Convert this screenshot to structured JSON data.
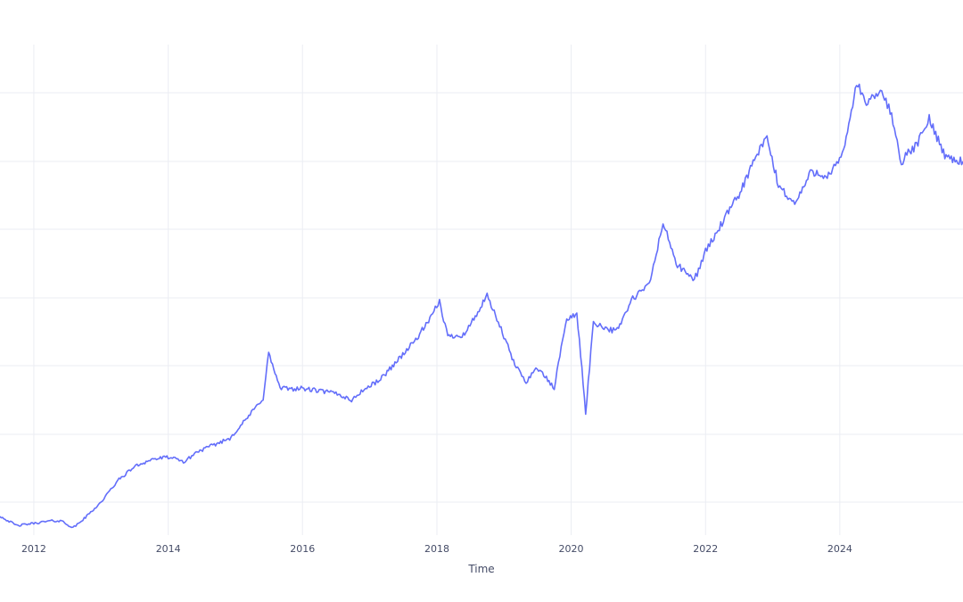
{
  "chart_data": {
    "type": "line",
    "title": "",
    "xlabel": "Time",
    "ylabel": "",
    "x_ticks": [
      "2012",
      "2014",
      "2016",
      "2018",
      "2020",
      "2022",
      "2024"
    ],
    "xlim": [
      "2011-07-01",
      "2025-11-01"
    ],
    "ylim": [
      0,
      1
    ],
    "grid": true,
    "legend": "none",
    "colors": {
      "series": "#636efa",
      "grid": "#ebedf3",
      "text": "#444b66"
    },
    "series": [
      {
        "name": "",
        "x": [
          "2011-07-01",
          "2011-10-01",
          "2012-01-01",
          "2012-04-01",
          "2012-06-01",
          "2012-08-01",
          "2012-10-01",
          "2013-01-01",
          "2013-04-01",
          "2013-07-01",
          "2013-10-01",
          "2014-01-01",
          "2014-04-01",
          "2014-06-01",
          "2014-09-01",
          "2014-12-01",
          "2015-03-01",
          "2015-06-01",
          "2015-07-01",
          "2015-09-01",
          "2016-01-01",
          "2016-04-01",
          "2016-07-01",
          "2016-10-01",
          "2016-11-01",
          "2017-03-01",
          "2017-06-01",
          "2017-09-01",
          "2017-12-01",
          "2018-01-15",
          "2018-03-01",
          "2018-06-01",
          "2018-10-01",
          "2018-12-01",
          "2019-03-01",
          "2019-05-01",
          "2019-07-01",
          "2019-10-01",
          "2019-12-01",
          "2020-02-01",
          "2020-03-20",
          "2020-05-01",
          "2020-09-01",
          "2020-12-01",
          "2021-03-01",
          "2021-05-15",
          "2021-08-01",
          "2021-11-01",
          "2022-01-01",
          "2022-04-01",
          "2022-07-01",
          "2022-10-01",
          "2022-12-01",
          "2023-02-01",
          "2023-05-01",
          "2023-08-01",
          "2023-11-01",
          "2024-01-15",
          "2024-04-01",
          "2024-06-01",
          "2024-08-01",
          "2024-10-01",
          "2024-12-01",
          "2025-03-01",
          "2025-05-01",
          "2025-08-01",
          "2025-11-01"
        ],
        "y": [
          0.04,
          0.02,
          0.025,
          0.03,
          0.03,
          0.015,
          0.035,
          0.07,
          0.115,
          0.145,
          0.16,
          0.165,
          0.155,
          0.175,
          0.19,
          0.205,
          0.245,
          0.29,
          0.385,
          0.31,
          0.31,
          0.305,
          0.3,
          0.285,
          0.3,
          0.33,
          0.37,
          0.41,
          0.46,
          0.495,
          0.42,
          0.425,
          0.505,
          0.45,
          0.36,
          0.325,
          0.355,
          0.31,
          0.45,
          0.47,
          0.26,
          0.45,
          0.43,
          0.5,
          0.53,
          0.66,
          0.57,
          0.54,
          0.6,
          0.66,
          0.72,
          0.8,
          0.84,
          0.74,
          0.7,
          0.77,
          0.76,
          0.8,
          0.955,
          0.91,
          0.94,
          0.9,
          0.79,
          0.83,
          0.88,
          0.8,
          0.79
        ]
      }
    ]
  }
}
